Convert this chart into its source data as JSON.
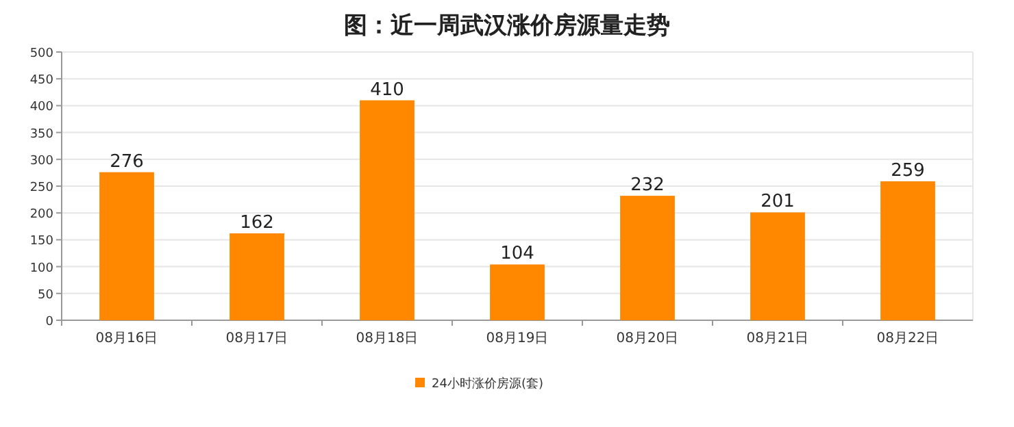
{
  "chart_data": {
    "type": "bar",
    "title": "图：近一周武汉涨价房源量走势",
    "categories": [
      "08月16日",
      "08月17日",
      "08月18日",
      "08月19日",
      "08月20日",
      "08月21日",
      "08月22日"
    ],
    "series": [
      {
        "name": "24小时涨价房源(套)",
        "color": "#ff8800",
        "values": [
          276,
          162,
          410,
          104,
          232,
          201,
          259
        ]
      }
    ],
    "ylim": [
      0,
      500
    ],
    "yticks": [
      0,
      50,
      100,
      150,
      200,
      250,
      300,
      350,
      400,
      450,
      500
    ],
    "grid": "y",
    "legend": "bottom",
    "data_labels": true
  }
}
